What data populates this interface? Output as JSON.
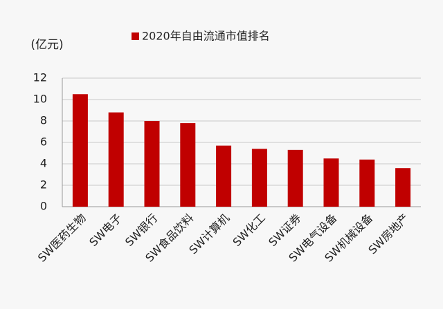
{
  "chart_data": {
    "type": "bar",
    "y_label": "(亿元)",
    "series": [
      {
        "name": "2020年自由流通市值排名",
        "color": "#c00000",
        "values": [
          10.5,
          8.8,
          8.0,
          7.8,
          5.7,
          5.4,
          5.3,
          4.5,
          4.4,
          3.6
        ]
      }
    ],
    "categories": [
      "SW医药生物",
      "SW电子",
      "SW银行",
      "SW食品饮料",
      "SW计算机",
      "SW化工",
      "SW证券",
      "SW电气设备",
      "SW机械设备",
      "SW房地产"
    ],
    "ylim": [
      0,
      12
    ],
    "yticks": [
      0,
      2,
      4,
      6,
      8,
      10,
      12
    ],
    "grid": true
  }
}
